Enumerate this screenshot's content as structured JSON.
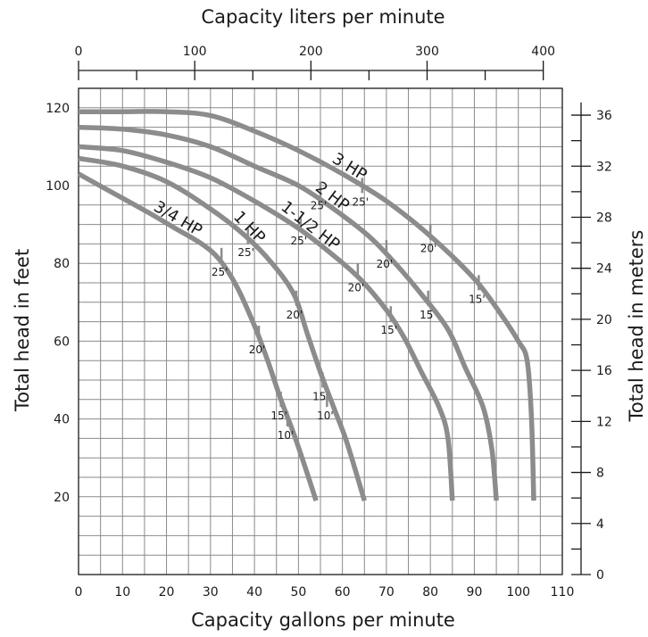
{
  "chart_data": {
    "type": "line",
    "title": "",
    "xlabel": "Capacity gallons per minute",
    "ylabel": "Total head in feet",
    "x_top_label": "Capacity liters per minute",
    "y_right_label": "Total head in meters",
    "xlim": [
      0,
      110
    ],
    "ylim": [
      0,
      125
    ],
    "x_ticks": [
      "0",
      "10",
      "20",
      "30",
      "40",
      "50",
      "60",
      "70",
      "80",
      "90",
      "100",
      "110"
    ],
    "y_ticks": [
      "20",
      "40",
      "60",
      "80",
      "100",
      "120"
    ],
    "x_top_ticks": [
      "0",
      "100",
      "200",
      "300",
      "400"
    ],
    "y_right_ticks": [
      "0",
      "4",
      "8",
      "12",
      "16",
      "20",
      "24",
      "28",
      "32",
      "36"
    ],
    "grid": true,
    "series": [
      {
        "name": "3/4 HP",
        "x": [
          0,
          8,
          16,
          22,
          28,
          32,
          36,
          40,
          43,
          46,
          49,
          52,
          54
        ],
        "y": [
          103,
          98,
          93,
          89,
          85,
          81,
          74,
          64,
          55,
          45,
          36,
          26,
          19
        ],
        "markers": [
          {
            "label": "25'",
            "x": 32.5,
            "y": 81
          },
          {
            "label": "20'",
            "x": 41,
            "y": 61
          },
          {
            "label": "15'",
            "x": 46,
            "y": 44
          },
          {
            "label": "10'",
            "x": 47.5,
            "y": 39
          }
        ]
      },
      {
        "name": "1 HP",
        "x": [
          0,
          10,
          20,
          30,
          38,
          44,
          49,
          52,
          55,
          58,
          61,
          65
        ],
        "y": [
          107,
          105,
          101,
          94,
          87,
          80,
          72,
          62,
          52,
          43,
          34,
          19
        ],
        "markers": [
          {
            "label": "25'",
            "x": 38.5,
            "y": 86
          },
          {
            "label": "20'",
            "x": 49.5,
            "y": 70
          },
          {
            "label": "15'",
            "x": 55.5,
            "y": 49
          },
          {
            "label": "10'",
            "x": 56.5,
            "y": 44
          }
        ]
      },
      {
        "name": "1-1/2 HP",
        "x": [
          0,
          10,
          20,
          30,
          40,
          50,
          58,
          64,
          70,
          74,
          78,
          82,
          84,
          85
        ],
        "y": [
          110,
          109,
          106,
          102,
          96,
          89,
          82,
          76,
          68,
          61,
          52,
          43,
          35,
          19
        ],
        "markers": [
          {
            "label": "25'",
            "x": 50.5,
            "y": 89
          },
          {
            "label": "20'",
            "x": 63.5,
            "y": 77
          },
          {
            "label": "15'",
            "x": 71,
            "y": 66
          }
        ]
      },
      {
        "name": "2 HP",
        "x": [
          0,
          10,
          20,
          30,
          40,
          50,
          58,
          66,
          72,
          78,
          84,
          88,
          92,
          94,
          95
        ],
        "y": [
          115,
          114.5,
          113,
          110,
          105,
          100,
          94,
          87,
          80,
          72,
          63,
          53,
          43,
          32,
          19
        ],
        "markers": [
          {
            "label": "25'",
            "x": 55,
            "y": 98
          },
          {
            "label": "20'",
            "x": 70,
            "y": 83
          },
          {
            "label": "15",
            "x": 79.5,
            "y": 70
          }
        ]
      },
      {
        "name": "3 HP",
        "x": [
          0,
          10,
          20,
          30,
          40,
          50,
          60,
          70,
          80,
          90,
          96,
          100,
          102,
          103,
          103.5
        ],
        "y": [
          119,
          119,
          119,
          118,
          114,
          109,
          103,
          96,
          87,
          76,
          67,
          60,
          55,
          40,
          19
        ],
        "markers": [
          {
            "label": "25'",
            "x": 64.5,
            "y": 99
          },
          {
            "label": "20'",
            "x": 80,
            "y": 87
          },
          {
            "label": "15'",
            "x": 91,
            "y": 74
          }
        ]
      }
    ],
    "curve_labels": [
      "3/4 HP",
      "1 HP",
      "1-1/2 HP",
      "2 HP",
      "3 HP"
    ]
  }
}
